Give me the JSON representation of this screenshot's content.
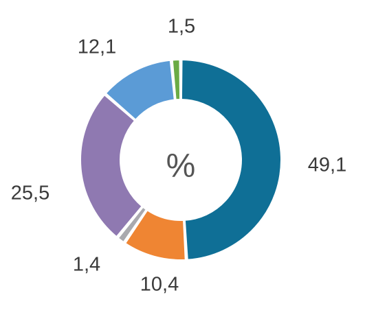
{
  "chart_data": {
    "type": "pie",
    "variant": "donut",
    "center_label": "%",
    "slices": [
      {
        "value": 49.1,
        "label": "49,1",
        "color": "#0f6f96"
      },
      {
        "value": 10.4,
        "label": "10,4",
        "color": "#ef8533"
      },
      {
        "value": 1.4,
        "label": "1,4",
        "color": "#a9a9ae"
      },
      {
        "value": 25.5,
        "label": "25,5",
        "color": "#8f79b1"
      },
      {
        "value": 12.1,
        "label": "12,1",
        "color": "#5b9bd6"
      },
      {
        "value": 1.5,
        "label": "1,5",
        "color": "#6aab45"
      }
    ],
    "start": "12 o'clock",
    "direction": "clockwise"
  }
}
